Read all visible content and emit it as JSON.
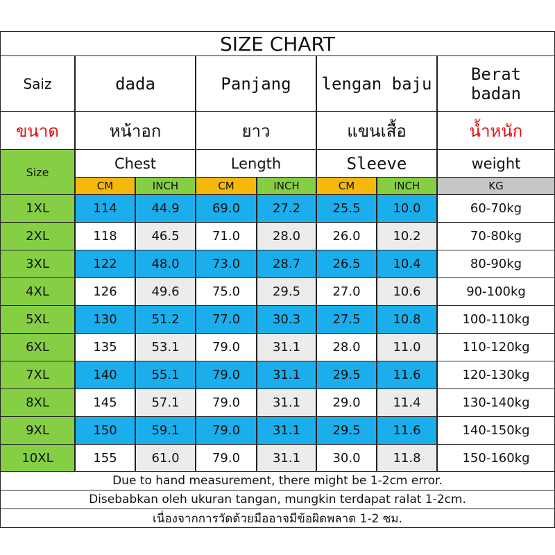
{
  "title": "SIZE CHART",
  "headers": {
    "malay": [
      "Saiz",
      "dada",
      "Panjang",
      "lengan baju",
      "Berat badan"
    ],
    "thai": [
      "ขนาด",
      "หน้าอก",
      "ยาว",
      "แขนเสื้อ",
      "น้ำหนัก"
    ],
    "english": [
      "Size",
      "Chest",
      "Length",
      "Sleeve",
      "weight"
    ]
  },
  "units": [
    "CM",
    "INCH",
    "CM",
    "INCH",
    "CM",
    "INCH",
    "KG"
  ],
  "rows": [
    [
      "1XL",
      "114",
      "44.9",
      "69.0",
      "27.2",
      "25.5",
      "10.0",
      "60-70kg"
    ],
    [
      "2XL",
      "118",
      "46.5",
      "71.0",
      "28.0",
      "26.0",
      "10.2",
      "70-80kg"
    ],
    [
      "3XL",
      "122",
      "48.0",
      "73.0",
      "28.7",
      "26.5",
      "10.4",
      "80-90kg"
    ],
    [
      "4XL",
      "126",
      "49.6",
      "75.0",
      "29.5",
      "27.0",
      "10.6",
      "90-100kg"
    ],
    [
      "5XL",
      "130",
      "51.2",
      "77.0",
      "30.3",
      "27.5",
      "10.8",
      "100-110kg"
    ],
    [
      "6XL",
      "135",
      "53.1",
      "79.0",
      "31.1",
      "28.0",
      "11.0",
      "110-120kg"
    ],
    [
      "7XL",
      "140",
      "55.1",
      "79.0",
      "31.1",
      "29.5",
      "11.6",
      "120-130kg"
    ],
    [
      "8XL",
      "145",
      "57.1",
      "79.0",
      "31.1",
      "29.0",
      "11.4",
      "130-140kg"
    ],
    [
      "9XL",
      "150",
      "59.1",
      "79.0",
      "31.1",
      "29.5",
      "11.6",
      "140-150kg"
    ],
    [
      "10XL",
      "155",
      "61.0",
      "79.0",
      "31.1",
      "30.0",
      "11.8",
      "150-160kg"
    ]
  ],
  "notes": [
    "Due to hand measurement, there might be 1-2cm error.",
    "Disebabkan oleh ukuran tangan, mungkin terdapat ralat 1-2cm.",
    "เนื่องจากการวัดด้วยมืออาจมีข้อผิดพลาด 1-2 ซม."
  ]
}
